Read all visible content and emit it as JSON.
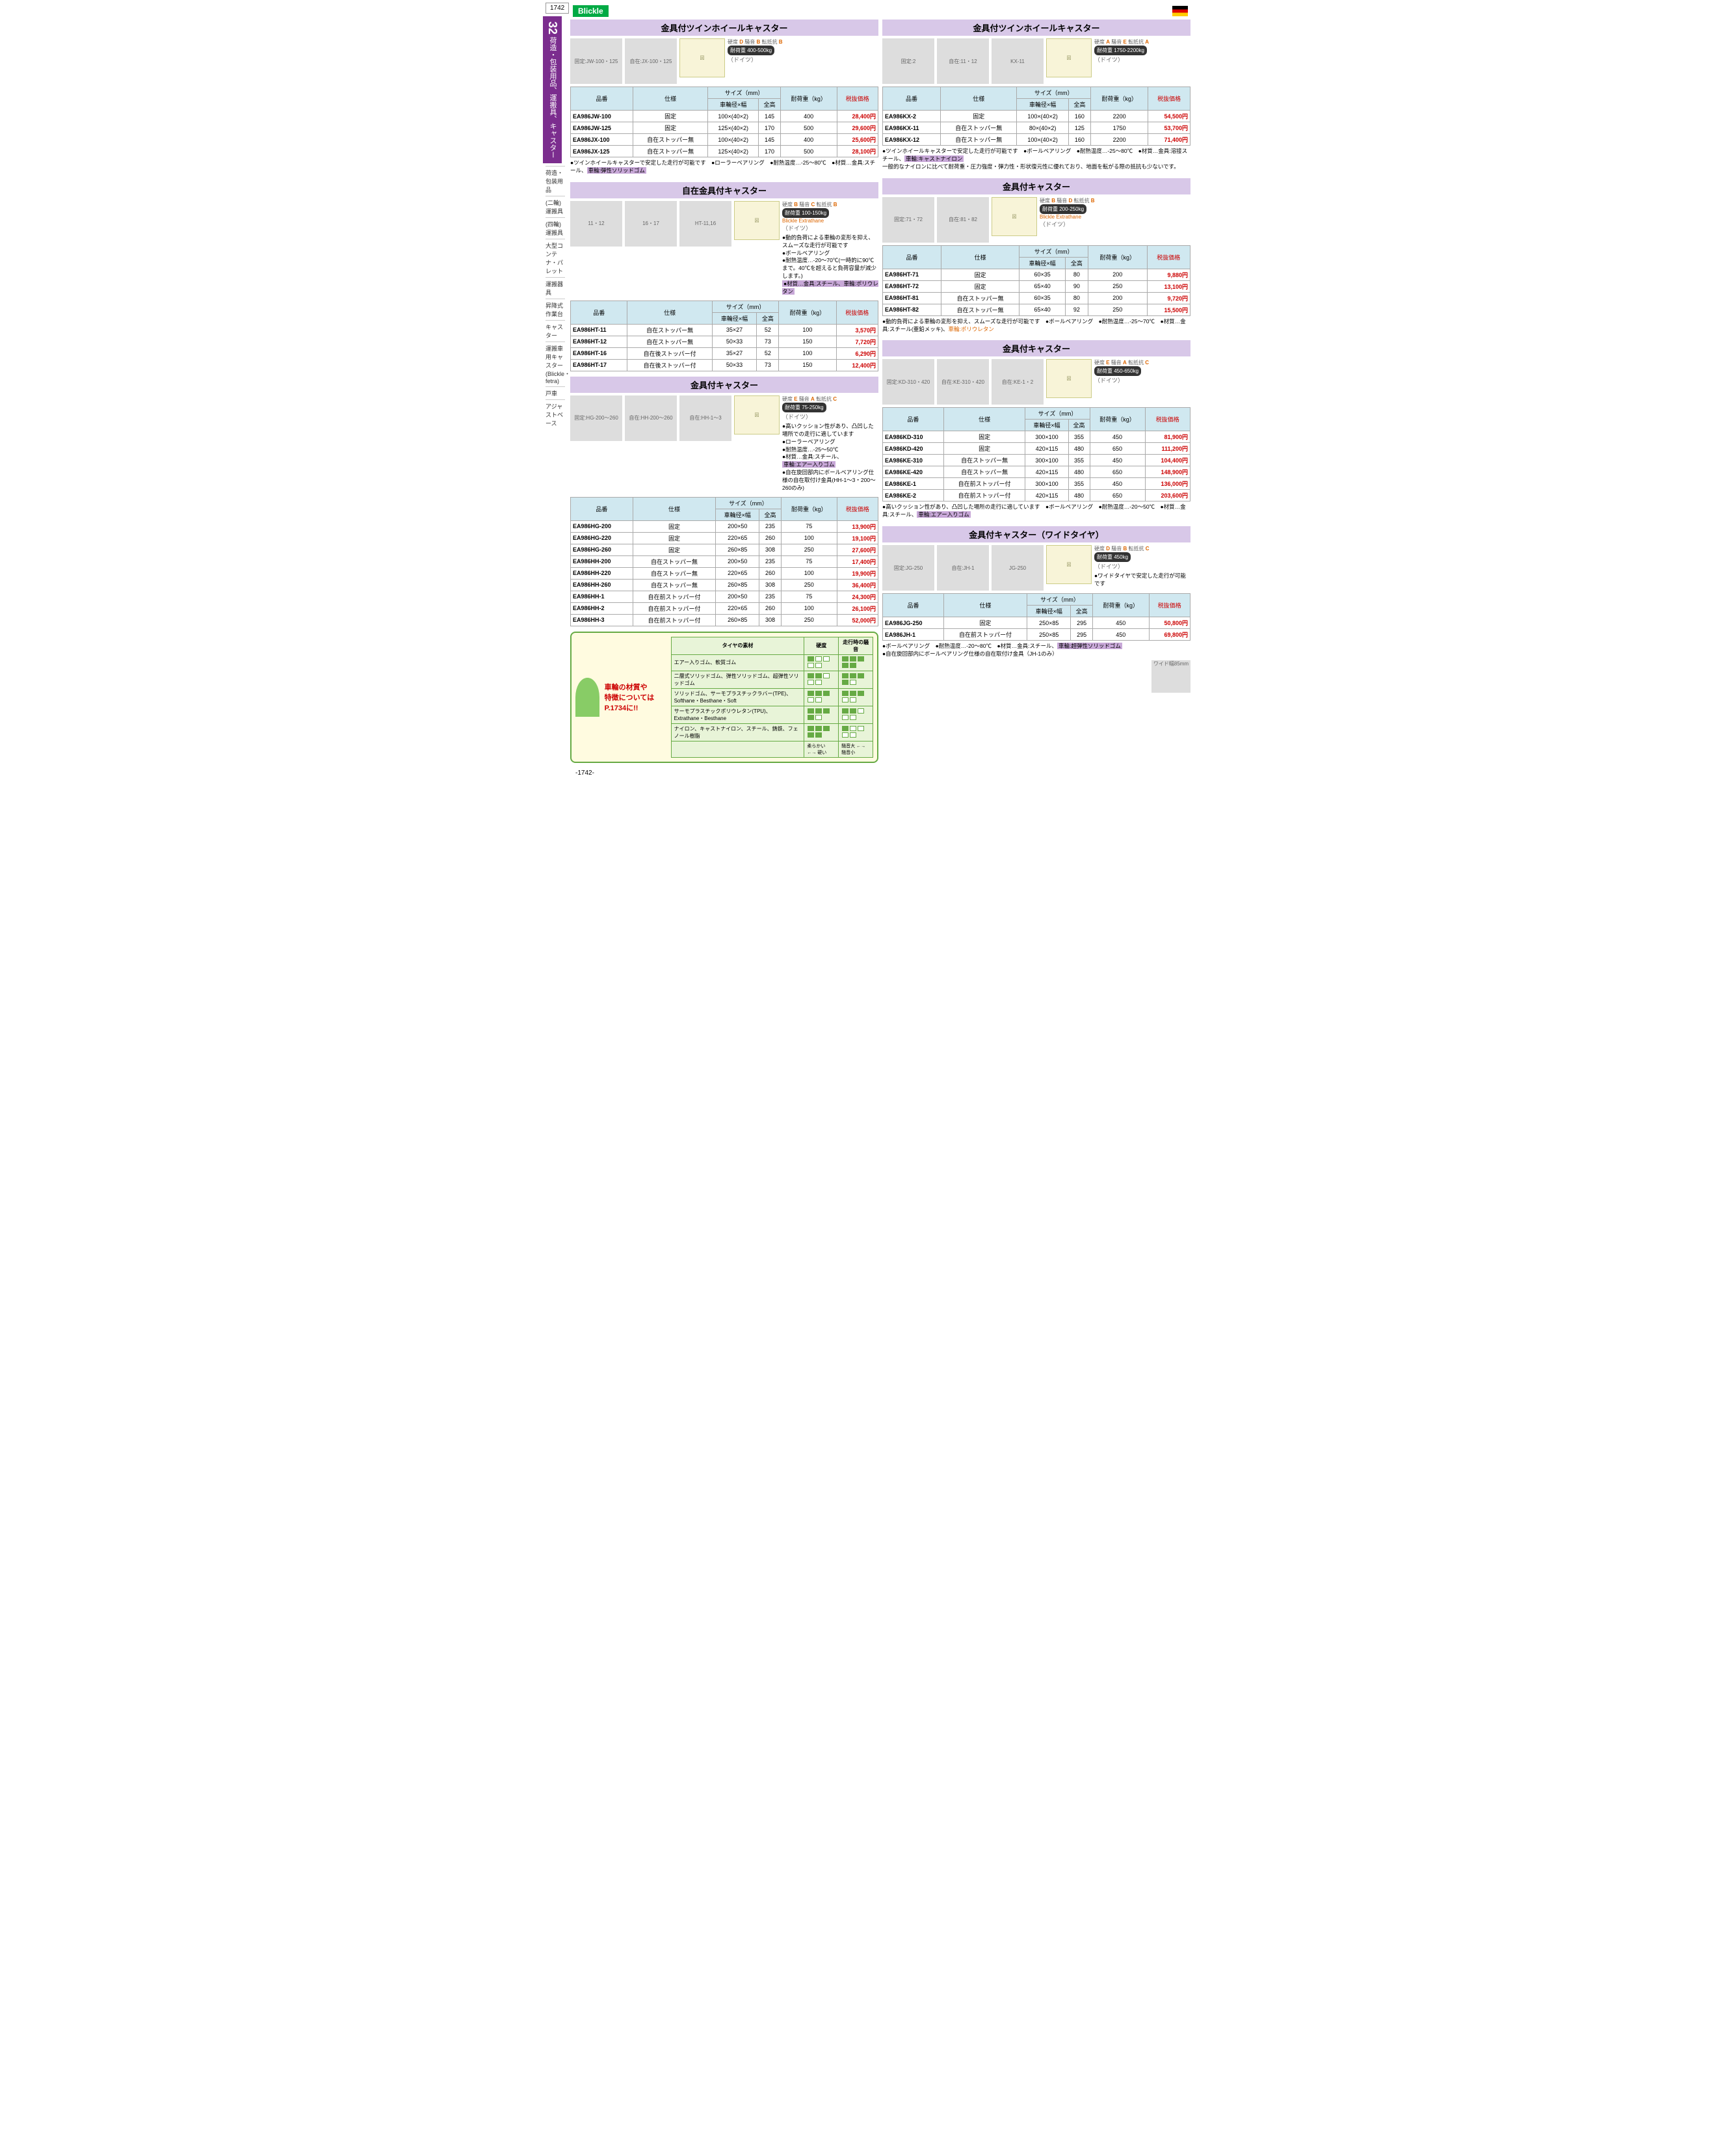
{
  "page_number_top": "1742",
  "page_number_bottom": "-1742-",
  "section_number": "32",
  "section_title_vertical": "荷造・包装用品、運搬具、キャスター",
  "brand": "Blickle",
  "origin": "（ドイツ）",
  "side_categories": [
    "荷造・包装用品",
    "(二輪)運搬具",
    "(四輪)運搬具",
    "大型コンテナ・パレット",
    "運搬器具",
    "昇降式作業台",
    "キャスター",
    "運搬車用キャスター(Blickle・fetra)",
    "戸車",
    "アジャストベース"
  ],
  "rating_labels": {
    "hardness": "硬度",
    "noise": "騒音",
    "resistance": "転抵抗"
  },
  "load_label": "耐荷重",
  "table_headers": {
    "part": "品番",
    "spec": "仕様",
    "size": "サイズ（mm）",
    "wheel": "車輪径×幅",
    "height": "全高",
    "load": "耐荷重（kg）",
    "price": "税抜価格"
  },
  "sections": [
    {
      "id": "s1",
      "title": "金具付ツインホイールキャスター",
      "images": [
        "固定:JW-100・125",
        "自在:JX-100・125"
      ],
      "ratings": {
        "hardness": "D",
        "noise": "B",
        "resistance": "B"
      },
      "load": "400-500kg",
      "rows": [
        {
          "part": "EA986JW-100",
          "spec": "固定",
          "wheel": "100×(40×2)",
          "height": "145",
          "load": "400",
          "price": "28,400円"
        },
        {
          "part": "EA986JW-125",
          "spec": "固定",
          "wheel": "125×(40×2)",
          "height": "170",
          "load": "500",
          "price": "29,600円"
        },
        {
          "part": "EA986JX-100",
          "spec": "自在ストッパー無",
          "wheel": "100×(40×2)",
          "height": "145",
          "load": "400",
          "price": "25,600円"
        },
        {
          "part": "EA986JX-125",
          "spec": "自在ストッパー無",
          "wheel": "125×(40×2)",
          "height": "170",
          "load": "500",
          "price": "28,100円"
        }
      ],
      "notes": "●ツインホイールキャスターで安定した走行が可能です　●ローラーベアリング　●耐熱温度…-25〜80℃　●材質…金具:スチール、",
      "note_hl": "車輪:弾性ソリッドゴム"
    },
    {
      "id": "s2",
      "title": "金具付ツインホイールキャスター",
      "images": [
        "固定:2",
        "自在:11・12",
        "KX-11",
        "KX-2,-12"
      ],
      "ratings": {
        "hardness": "A",
        "noise": "E",
        "resistance": "A"
      },
      "load": "1750-2200kg",
      "rows": [
        {
          "part": "EA986KX-2",
          "spec": "固定",
          "wheel": "100×(40×2)",
          "height": "160",
          "load": "2200",
          "price": "54,500円"
        },
        {
          "part": "EA986KX-11",
          "spec": "自在ストッパー無",
          "wheel": "80×(40×2)",
          "height": "125",
          "load": "1750",
          "price": "53,700円"
        },
        {
          "part": "EA986KX-12",
          "spec": "自在ストッパー無",
          "wheel": "100×(40×2)",
          "height": "160",
          "load": "2200",
          "price": "71,400円"
        }
      ],
      "notes": "●ツインホイールキャスターで安定した走行が可能です　●ボールベアリング　●耐熱温度…-25〜80℃　●材質…金具:溶接スチール、",
      "note_hl": "車輪:キャストナイロン",
      "notes2": "一般的なナイロンに比べて耐荷重・圧力強度・弾力性・形状復元性に優れており、地面を転がる際の抵抗も少ないです。"
    },
    {
      "id": "s3",
      "title": "自在金具付キャスター",
      "images": [
        "11・12",
        "16・17",
        "HT-11,16",
        "HT-12,17"
      ],
      "ratings": {
        "hardness": "B",
        "noise": "C",
        "resistance": "B"
      },
      "load": "100-150kg",
      "brand_extra": "Blickle Extrathane",
      "bullets": [
        "●動的負荷による車輪の変形を抑え、スムーズな走行が可能です",
        "●ボールベアリング",
        "●耐熱温度…-20〜70℃(一時的に90℃まで。40℃を超えると負荷容量が減少します。)",
        "●材質…金具:スチール、車輪:ポリウレタン"
      ],
      "rows": [
        {
          "part": "EA986HT-11",
          "spec": "自在ストッパー無",
          "wheel": "35×27",
          "height": "52",
          "load": "100",
          "price": "3,570円"
        },
        {
          "part": "EA986HT-12",
          "spec": "自在ストッパー無",
          "wheel": "50×33",
          "height": "73",
          "load": "150",
          "price": "7,720円"
        },
        {
          "part": "EA986HT-16",
          "spec": "自在後ストッパー付",
          "wheel": "35×27",
          "height": "52",
          "load": "100",
          "price": "6,290円"
        },
        {
          "part": "EA986HT-17",
          "spec": "自在後ストッパー付",
          "wheel": "50×33",
          "height": "73",
          "load": "150",
          "price": "12,400円"
        }
      ]
    },
    {
      "id": "s4",
      "title": "金具付キャスター",
      "images": [
        "固定:71・72",
        "自在:81・82"
      ],
      "ratings": {
        "hardness": "B",
        "noise": "D",
        "resistance": "B"
      },
      "load": "200-250kg",
      "brand_extra": "Blickle Extrathane",
      "rows": [
        {
          "part": "EA986HT-71",
          "spec": "固定",
          "wheel": "60×35",
          "height": "80",
          "load": "200",
          "price": "9,880円"
        },
        {
          "part": "EA986HT-72",
          "spec": "固定",
          "wheel": "65×40",
          "height": "90",
          "load": "250",
          "price": "13,100円"
        },
        {
          "part": "EA986HT-81",
          "spec": "自在ストッパー無",
          "wheel": "60×35",
          "height": "80",
          "load": "200",
          "price": "9,720円"
        },
        {
          "part": "EA986HT-82",
          "spec": "自在ストッパー無",
          "wheel": "65×40",
          "height": "92",
          "load": "250",
          "price": "15,500円"
        }
      ],
      "notes": "●動的負荷による車輪の変形を抑え、スムーズな走行が可能です　●ボールベアリング　●耐熱温度…-25〜70℃　●材質…金具:スチール(亜鉛メッキ)、",
      "note_hl_orange": "車輪:ポリウレタン"
    },
    {
      "id": "s5",
      "title": "金具付キャスター",
      "images": [
        "固定:HG-200〜260",
        "自在:HH-200〜260",
        "自在:HH-1〜3",
        "HG-200,220 HH-200,220",
        "HH-1,2",
        "HG-260",
        "HH-260",
        "HH-3"
      ],
      "ratings": {
        "hardness": "E",
        "noise": "A",
        "resistance": "C"
      },
      "load": "75-250kg",
      "bullets": [
        "●高いクッション性があり、凸凹した場所での走行に適しています",
        "●ローラーベアリング",
        "●耐熱温度…-25〜50℃",
        "●材質…金具:スチール、",
        "車輪:エアー入りゴム",
        "●自在旋回部内にボールベアリング仕様の自在取付け金具(HH-1〜3・200〜260のみ)"
      ],
      "rows": [
        {
          "part": "EA986HG-200",
          "spec": "固定",
          "wheel": "200×50",
          "height": "235",
          "load": "75",
          "price": "13,900円"
        },
        {
          "part": "EA986HG-220",
          "spec": "固定",
          "wheel": "220×65",
          "height": "260",
          "load": "100",
          "price": "19,100円"
        },
        {
          "part": "EA986HG-260",
          "spec": "固定",
          "wheel": "260×85",
          "height": "308",
          "load": "250",
          "price": "27,600円"
        },
        {
          "part": "EA986HH-200",
          "spec": "自在ストッパー無",
          "wheel": "200×50",
          "height": "235",
          "load": "75",
          "price": "17,400円"
        },
        {
          "part": "EA986HH-220",
          "spec": "自在ストッパー無",
          "wheel": "220×65",
          "height": "260",
          "load": "100",
          "price": "19,900円"
        },
        {
          "part": "EA986HH-260",
          "spec": "自在ストッパー無",
          "wheel": "260×85",
          "height": "308",
          "load": "250",
          "price": "36,400円"
        },
        {
          "part": "EA986HH-1",
          "spec": "自在前ストッパー付",
          "wheel": "200×50",
          "height": "235",
          "load": "75",
          "price": "24,300円"
        },
        {
          "part": "EA986HH-2",
          "spec": "自在前ストッパー付",
          "wheel": "220×65",
          "height": "260",
          "load": "100",
          "price": "26,100円"
        },
        {
          "part": "EA986HH-3",
          "spec": "自在前ストッパー付",
          "wheel": "260×85",
          "height": "308",
          "load": "250",
          "price": "52,000円"
        }
      ]
    },
    {
      "id": "s6",
      "title": "金具付キャスター",
      "images": [
        "固定:KD-310・420",
        "自在:KE-310・420",
        "自在:KE-1・2"
      ],
      "ratings": {
        "hardness": "E",
        "noise": "A",
        "resistance": "C"
      },
      "load": "450-650kg",
      "rows": [
        {
          "part": "EA986KD-310",
          "spec": "固定",
          "wheel": "300×100",
          "height": "355",
          "load": "450",
          "price": "81,900円"
        },
        {
          "part": "EA986KD-420",
          "spec": "固定",
          "wheel": "420×115",
          "height": "480",
          "load": "650",
          "price": "111,200円"
        },
        {
          "part": "EA986KE-310",
          "spec": "自在ストッパー無",
          "wheel": "300×100",
          "height": "355",
          "load": "450",
          "price": "104,400円"
        },
        {
          "part": "EA986KE-420",
          "spec": "自在ストッパー無",
          "wheel": "420×115",
          "height": "480",
          "load": "650",
          "price": "148,900円"
        },
        {
          "part": "EA986KE-1",
          "spec": "自在前ストッパー付",
          "wheel": "300×100",
          "height": "355",
          "load": "450",
          "price": "136,000円"
        },
        {
          "part": "EA986KE-2",
          "spec": "自在前ストッパー付",
          "wheel": "420×115",
          "height": "480",
          "load": "650",
          "price": "203,600円"
        }
      ],
      "notes": "●高いクッション性があり、凸凹した場所の走行に適しています　●ボールベアリング　●耐熱温度…-20〜50℃　●材質…金具:スチール、",
      "note_hl": "車輪:エアー入りゴム"
    },
    {
      "id": "s7",
      "title": "金具付キャスター（ワイドタイヤ）",
      "images": [
        "固定:JG-250",
        "自在:JH-1",
        "JG-250",
        "JH-1"
      ],
      "ratings": {
        "hardness": "D",
        "noise": "B",
        "resistance": "C"
      },
      "load": "450kg",
      "bullets": [
        "●ワイドタイヤで安定した走行が可能です"
      ],
      "rows": [
        {
          "part": "EA986JG-250",
          "spec": "固定",
          "wheel": "250×85",
          "height": "295",
          "load": "450",
          "price": "50,800円"
        },
        {
          "part": "EA986JH-1",
          "spec": "自在前ストッパー付",
          "wheel": "250×85",
          "height": "295",
          "load": "450",
          "price": "69,800円"
        }
      ],
      "notes": "●ボールベアリング　●耐熱温度…-20〜80℃　●材質…金具:スチール、",
      "note_hl": "車輪:超弾性ソリッドゴム",
      "notes2": "●自在旋回部内にボールベアリング仕様の自在取付け金具（JH-1のみ）",
      "extra_label": "ワイド幅85mm"
    }
  ],
  "material_callout": {
    "text1": "車輪の材質や",
    "text2": "特徴についてはP.1734に!!",
    "table_headers": [
      "タイヤの素材",
      "硬度",
      "走行時の騒音"
    ],
    "rows": [
      {
        "mat": "エアー入りゴム、軟質ゴム",
        "h": 1,
        "n": 1
      },
      {
        "mat": "二層式ソリッドゴム、弾性ソリッドゴム、超弾性ソリッドゴム",
        "h": 2,
        "n": 2
      },
      {
        "mat": "ソリッドゴム、サーモプラスチックラバー(TPE)、Softhane・Besthane・Soft",
        "h": 3,
        "n": 3
      },
      {
        "mat": "サーモプラスチックポリウレタン(TPU)、Extrathane・Besthane",
        "h": 4,
        "n": 4
      },
      {
        "mat": "ナイロン、キャストナイロン、スチール、鋳鉄、フェノール樹脂",
        "h": 5,
        "n": 5
      }
    ],
    "hardness_legend": "柔らかい ←→ 硬い",
    "noise_legend": "騒音大 ←→ 騒音小"
  }
}
